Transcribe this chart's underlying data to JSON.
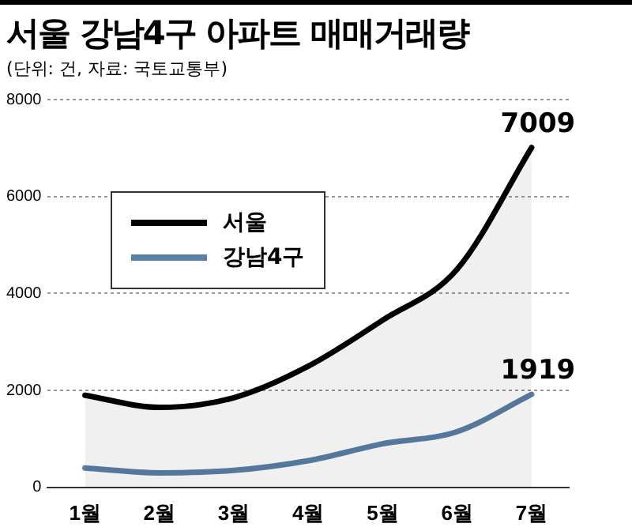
{
  "chart_data": {
    "type": "line",
    "title": "서울 강남4구 아파트 매매거래량",
    "subtitle": "(단위: 건, 자료: 국토교통부)",
    "categories": [
      "1월",
      "2월",
      "3월",
      "4월",
      "5월",
      "6월",
      "7월"
    ],
    "series": [
      {
        "name": "서울",
        "type": "area",
        "color": "#000000",
        "values": [
          1900,
          1650,
          1850,
          2500,
          3450,
          4500,
          7009
        ],
        "value_labels": [
          null,
          null,
          null,
          null,
          null,
          null,
          "7009"
        ]
      },
      {
        "name": "강남4구",
        "color": "#5b7fa6",
        "values": [
          400,
          300,
          350,
          550,
          900,
          1150,
          1919
        ],
        "value_labels": [
          null,
          null,
          null,
          null,
          null,
          null,
          "1919"
        ]
      }
    ],
    "ylim": [
      0,
      8000
    ],
    "yticks": [
      0,
      2000,
      4000,
      6000,
      8000
    ],
    "grid": "y",
    "legend": "top left",
    "marker": "none",
    "line_style": "solid"
  }
}
